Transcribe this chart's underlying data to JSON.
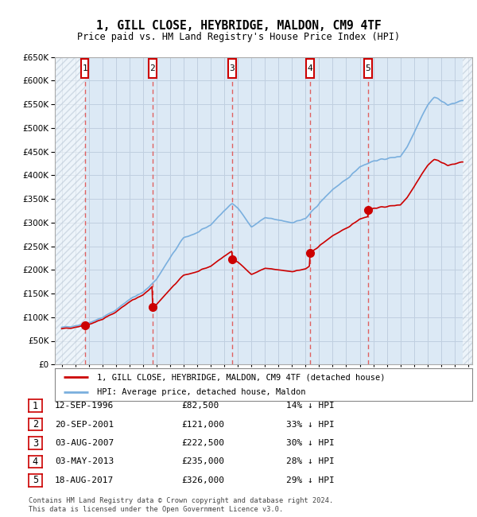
{
  "title": "1, GILL CLOSE, HEYBRIDGE, MALDON, CM9 4TF",
  "subtitle": "Price paid vs. HM Land Registry's House Price Index (HPI)",
  "footer": "Contains HM Land Registry data © Crown copyright and database right 2024.\nThis data is licensed under the Open Government Licence v3.0.",
  "legend_line1": "1, GILL CLOSE, HEYBRIDGE, MALDON, CM9 4TF (detached house)",
  "legend_line2": "HPI: Average price, detached house, Maldon",
  "sales": [
    {
      "num": 1,
      "date": "12-SEP-1996",
      "price": 82500,
      "pct": "14%",
      "x_year": 1996.71
    },
    {
      "num": 2,
      "date": "20-SEP-2001",
      "price": 121000,
      "pct": "33%",
      "x_year": 2001.71
    },
    {
      "num": 3,
      "date": "03-AUG-2007",
      "price": 222500,
      "pct": "30%",
      "x_year": 2007.58
    },
    {
      "num": 4,
      "date": "03-MAY-2013",
      "price": 235000,
      "pct": "28%",
      "x_year": 2013.33
    },
    {
      "num": 5,
      "date": "18-AUG-2017",
      "price": 326000,
      "pct": "29%",
      "x_year": 2017.62
    }
  ],
  "hpi_color": "#7aafde",
  "price_color": "#cc0000",
  "vline_color": "#e06060",
  "box_color": "#cc0000",
  "plot_bg_color": "#dce9f5",
  "ylim": [
    0,
    650000
  ],
  "xlim_start": 1994.5,
  "xlim_end": 2025.3,
  "yticks": [
    0,
    50000,
    100000,
    150000,
    200000,
    250000,
    300000,
    350000,
    400000,
    450000,
    500000,
    550000,
    600000,
    650000
  ],
  "xticks": [
    1995,
    1996,
    1997,
    1998,
    1999,
    2000,
    2001,
    2002,
    2003,
    2004,
    2005,
    2006,
    2007,
    2008,
    2009,
    2010,
    2011,
    2012,
    2013,
    2014,
    2015,
    2016,
    2017,
    2018,
    2019,
    2020,
    2021,
    2022,
    2023,
    2024,
    2025
  ],
  "bg_color": "#ffffff",
  "grid_color": "#c0cfe0",
  "hatch_color": "#b0c0d0"
}
